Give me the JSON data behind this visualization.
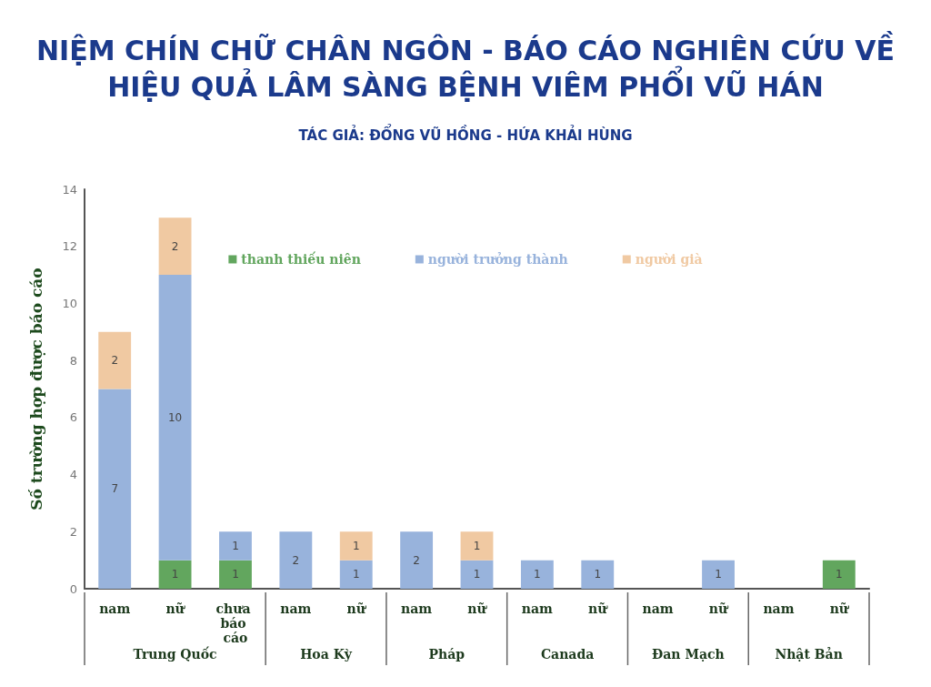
{
  "chart_data": {
    "type": "bar",
    "stacked": true,
    "title": "NIỆM CHÍN CHỮ CHÂN NGÔN - BÁO CÁO NGHIÊN CỨU VỀ\nHIỆU QUẢ LÂM SÀNG BỆNH VIÊM PHỔI VŨ HÁN",
    "subtitle": "TÁC GIẢ: ĐỔNG VŨ HỒNG - HỨA KHẢI HÙNG",
    "ylabel": "Số trường hợp được báo cáo",
    "categories": [
      "nam",
      "nữ",
      "chưa báo cáo",
      "nam",
      "nữ",
      "nam",
      "nữ",
      "nam",
      "nữ",
      "nam",
      "nữ",
      "nam",
      "nữ"
    ],
    "series": [
      {
        "name": "thanh thiếu niên",
        "color": "#62a65e",
        "values": [
          null,
          1,
          1,
          null,
          null,
          null,
          null,
          null,
          null,
          null,
          null,
          null,
          1
        ]
      },
      {
        "name": "người trưởng thành",
        "color": "#98b3dc",
        "values": [
          7,
          10,
          1,
          2,
          1,
          2,
          1,
          1,
          1,
          null,
          1,
          null,
          null
        ]
      },
      {
        "name": "người già",
        "color": "#f0c9a2",
        "values": [
          2,
          2,
          null,
          null,
          1,
          null,
          1,
          null,
          null,
          null,
          null,
          null,
          null
        ]
      }
    ],
    "ylim": [
      0,
      14
    ],
    "yticks": [
      0,
      2,
      4,
      6,
      8,
      10,
      12,
      14
    ],
    "annotations": [
      "Trung Quốc",
      "Hoa Kỳ",
      "Pháp",
      "Canada",
      "Đan Mạch",
      "Nhật Bản"
    ],
    "data_labels": true,
    "grid": false,
    "legend": "top"
  }
}
